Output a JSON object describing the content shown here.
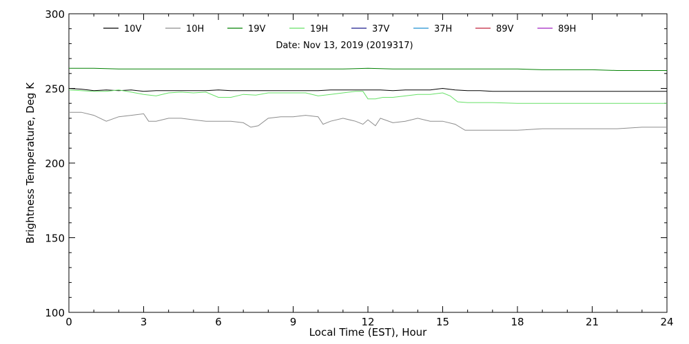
{
  "chart_data": {
    "type": "line",
    "title": "",
    "annotation": "Date: Nov 13, 2019 (2019317)",
    "xlabel": "Local Time (EST), Hour",
    "ylabel": "Brightness Temperature, Deg K",
    "xlim": [
      0,
      24
    ],
    "ylim": [
      100,
      300
    ],
    "x_ticks": [
      0,
      3,
      6,
      9,
      12,
      15,
      18,
      21,
      24
    ],
    "y_ticks": [
      100,
      150,
      200,
      250,
      300
    ],
    "x_minor_step": 1,
    "y_minor_step": 10,
    "grid": false,
    "legend_position": "top",
    "series": [
      {
        "name": "10V",
        "color": "#000000",
        "x": [
          0,
          0.5,
          1,
          1.5,
          2,
          2.5,
          3,
          3.5,
          4,
          4.5,
          5,
          5.5,
          6,
          6.5,
          7,
          7.5,
          8,
          8.5,
          9,
          9.5,
          10,
          10.5,
          11,
          11.5,
          12,
          12.5,
          13,
          13.5,
          14,
          14.5,
          15,
          15.5,
          16,
          16.5,
          17,
          18,
          19,
          20,
          21,
          22,
          23,
          24
        ],
        "values": [
          250,
          249.5,
          248.5,
          249,
          248.5,
          249,
          248,
          248.5,
          248.5,
          248.5,
          248.5,
          248.5,
          249,
          248.5,
          248.5,
          248.5,
          248.5,
          248.5,
          248.5,
          248.5,
          248.5,
          249,
          249,
          249,
          249,
          249,
          248.5,
          249,
          249,
          249,
          250,
          249,
          248.5,
          248.5,
          248,
          248,
          248,
          248,
          248,
          248,
          248,
          248
        ]
      },
      {
        "name": "10H",
        "color": "#8c8c8c",
        "x": [
          0,
          0.5,
          1,
          1.5,
          2,
          2.5,
          3,
          3.2,
          3.5,
          4,
          4.5,
          5,
          5.5,
          6,
          6.5,
          7,
          7.3,
          7.6,
          8,
          8.5,
          9,
          9.5,
          10,
          10.2,
          10.5,
          11,
          11.5,
          11.8,
          12,
          12.3,
          12.5,
          13,
          13.5,
          14,
          14.5,
          15,
          15.5,
          15.9,
          16.3,
          17,
          18,
          19,
          20,
          21,
          22,
          23,
          24
        ],
        "values": [
          234,
          234,
          232,
          228,
          231,
          232,
          233,
          228,
          228,
          230,
          230,
          229,
          228,
          228,
          228,
          227,
          224,
          225,
          230,
          231,
          231,
          232,
          231,
          226,
          228,
          230,
          228,
          226,
          229,
          225,
          230,
          227,
          228,
          230,
          228,
          228,
          226,
          222,
          222,
          222,
          222,
          223,
          223,
          223,
          223,
          224,
          224
        ]
      },
      {
        "name": "19V",
        "color": "#008000",
        "x": [
          0,
          1,
          2,
          3,
          4,
          5,
          6,
          7,
          8,
          9,
          10,
          11,
          12,
          13,
          14,
          15,
          16,
          17,
          18,
          19,
          20,
          21,
          22,
          23,
          24
        ],
        "values": [
          263.5,
          263.5,
          263,
          263,
          263,
          263,
          263,
          263,
          263,
          263,
          263,
          263,
          263.5,
          263,
          263,
          263,
          263,
          263,
          263,
          262.5,
          262.5,
          262.5,
          262,
          262,
          262
        ]
      },
      {
        "name": "19H",
        "color": "#66e066",
        "x": [
          0,
          0.5,
          1,
          1.5,
          2,
          2.5,
          3,
          3.5,
          4,
          4.5,
          5,
          5.5,
          6,
          6.5,
          7,
          7.5,
          8,
          8.5,
          9,
          9.5,
          10,
          10.5,
          11,
          11.5,
          11.8,
          12,
          12.3,
          12.6,
          13,
          13.5,
          14,
          14.5,
          15,
          15.3,
          15.6,
          16,
          17,
          18,
          19,
          20,
          21,
          22,
          23,
          24
        ],
        "values": [
          249,
          248.5,
          248,
          248,
          249,
          247.5,
          246,
          245,
          247,
          247.5,
          247,
          247.5,
          244,
          244,
          246,
          245.5,
          247,
          247,
          247,
          247,
          245,
          246,
          247,
          248,
          248,
          243,
          243,
          244,
          244,
          245,
          246,
          246,
          247,
          245,
          241,
          240.5,
          240.5,
          240,
          240,
          240,
          240,
          240,
          240,
          240
        ]
      },
      {
        "name": "37V",
        "color": "#1a1a8c",
        "x": [],
        "values": []
      },
      {
        "name": "37H",
        "color": "#1e8fd0",
        "x": [],
        "values": []
      },
      {
        "name": "89V",
        "color": "#c0203a",
        "x": [],
        "values": []
      },
      {
        "name": "89H",
        "color": "#a020c0",
        "x": [],
        "values": []
      }
    ]
  }
}
